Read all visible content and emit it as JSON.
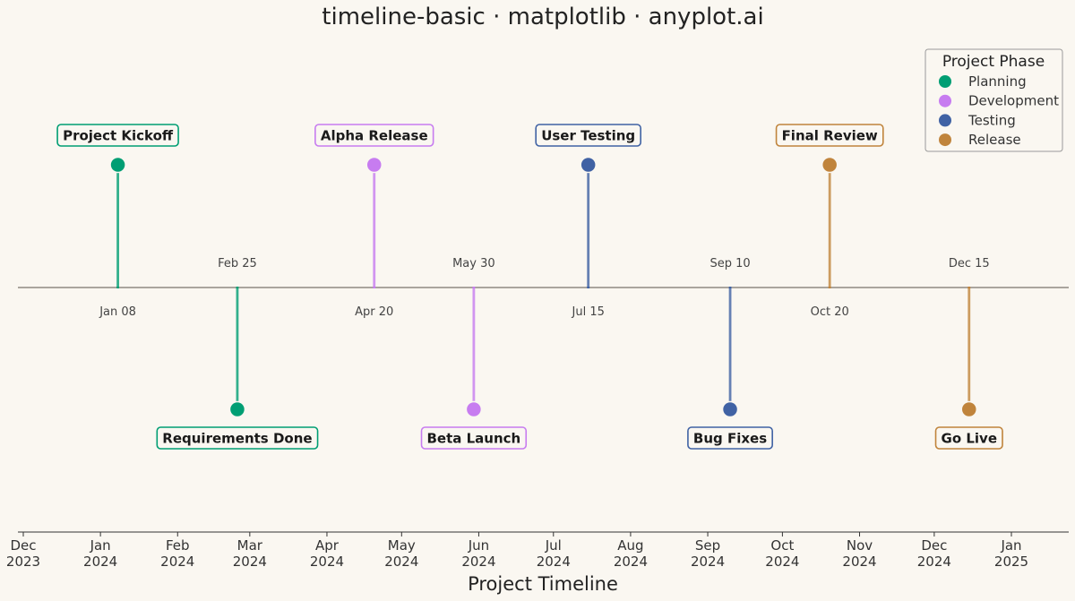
{
  "chart_data": {
    "type": "timeline",
    "title": "timeline-basic · matplotlib · anyplot.ai",
    "xlabel": "Project Timeline",
    "x_ticks": [
      {
        "date": "2023-12-01",
        "label": [
          "Dec",
          "2023"
        ]
      },
      {
        "date": "2024-01-01",
        "label": [
          "Jan",
          "2024"
        ]
      },
      {
        "date": "2024-02-01",
        "label": [
          "Feb",
          "2024"
        ]
      },
      {
        "date": "2024-03-01",
        "label": [
          "Mar",
          "2024"
        ]
      },
      {
        "date": "2024-04-01",
        "label": [
          "Apr",
          "2024"
        ]
      },
      {
        "date": "2024-05-01",
        "label": [
          "May",
          "2024"
        ]
      },
      {
        "date": "2024-06-01",
        "label": [
          "Jun",
          "2024"
        ]
      },
      {
        "date": "2024-07-01",
        "label": [
          "Jul",
          "2024"
        ]
      },
      {
        "date": "2024-08-01",
        "label": [
          "Aug",
          "2024"
        ]
      },
      {
        "date": "2024-09-01",
        "label": [
          "Sep",
          "2024"
        ]
      },
      {
        "date": "2024-10-01",
        "label": [
          "Oct",
          "2024"
        ]
      },
      {
        "date": "2024-11-01",
        "label": [
          "Nov",
          "2024"
        ]
      },
      {
        "date": "2024-12-01",
        "label": [
          "Dec",
          "2024"
        ]
      },
      {
        "date": "2025-01-01",
        "label": [
          "Jan",
          "2025"
        ]
      }
    ],
    "legend": {
      "title": "Project Phase",
      "placement": "top-right",
      "entries": [
        {
          "name": "Planning",
          "color": "#009E73"
        },
        {
          "name": "Development",
          "color": "#C77CF0"
        },
        {
          "name": "Testing",
          "color": "#4062A4"
        },
        {
          "name": "Release",
          "color": "#C0843C"
        }
      ]
    },
    "events": [
      {
        "date": "2024-01-08",
        "date_label": "Jan 08",
        "event": "Project Kickoff",
        "phase": "Planning",
        "side": "above"
      },
      {
        "date": "2024-02-25",
        "date_label": "Feb 25",
        "event": "Requirements Done",
        "phase": "Planning",
        "side": "below"
      },
      {
        "date": "2024-04-20",
        "date_label": "Apr 20",
        "event": "Alpha Release",
        "phase": "Development",
        "side": "above"
      },
      {
        "date": "2024-05-30",
        "date_label": "May 30",
        "event": "Beta Launch",
        "phase": "Development",
        "side": "below"
      },
      {
        "date": "2024-07-15",
        "date_label": "Jul 15",
        "event": "User Testing",
        "phase": "Testing",
        "side": "above"
      },
      {
        "date": "2024-09-10",
        "date_label": "Sep 10",
        "event": "Bug Fixes",
        "phase": "Testing",
        "side": "below"
      },
      {
        "date": "2024-10-20",
        "date_label": "Oct 20",
        "event": "Final Review",
        "phase": "Release",
        "side": "above"
      },
      {
        "date": "2024-12-15",
        "date_label": "Dec 15",
        "event": "Go Live",
        "phase": "Release",
        "side": "below"
      }
    ],
    "grid": false
  }
}
